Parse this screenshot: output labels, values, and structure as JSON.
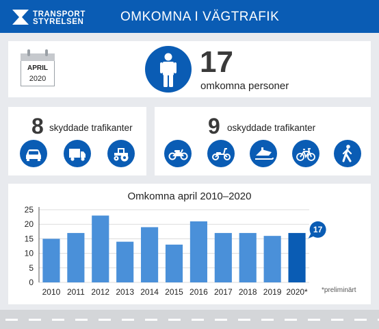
{
  "header": {
    "logo_line1": "TRANSPORT",
    "logo_line2": "STYRELSEN",
    "title": "OMKOMNA I VÄGTRAFIK"
  },
  "summary": {
    "calendar_month": "APRIL",
    "calendar_year": "2020",
    "total": "17",
    "total_label": "omkomna personer"
  },
  "protected": {
    "count": "8",
    "label": "skyddade trafikanter",
    "icons": [
      "car-icon",
      "truck-icon",
      "tractor-icon"
    ]
  },
  "unprotected": {
    "count": "9",
    "label": "oskyddade trafikanter",
    "icons": [
      "motorcycle-icon",
      "moped-icon",
      "snowmobile-icon",
      "bicycle-icon",
      "pedestrian-icon"
    ]
  },
  "chart_data": {
    "type": "bar",
    "title": "Omkomna april 2010–2020",
    "categories": [
      "2010",
      "2011",
      "2012",
      "2013",
      "2014",
      "2015",
      "2016",
      "2017",
      "2018",
      "2019",
      "2020*"
    ],
    "values": [
      15,
      17,
      23,
      14,
      19,
      13,
      21,
      17,
      17,
      16,
      17
    ],
    "ylim": [
      0,
      25
    ],
    "yticks": [
      "0",
      "5",
      "10",
      "15",
      "20",
      "25"
    ],
    "bar_color": "#4a90d9",
    "highlight_color": "#0a5cb4",
    "highlight_index": 10,
    "highlight_label": "17",
    "footnote": "*preliminärt",
    "grid": true
  },
  "colors": {
    "brand_blue": "#0a5cb4",
    "background": "#e8eaee"
  }
}
